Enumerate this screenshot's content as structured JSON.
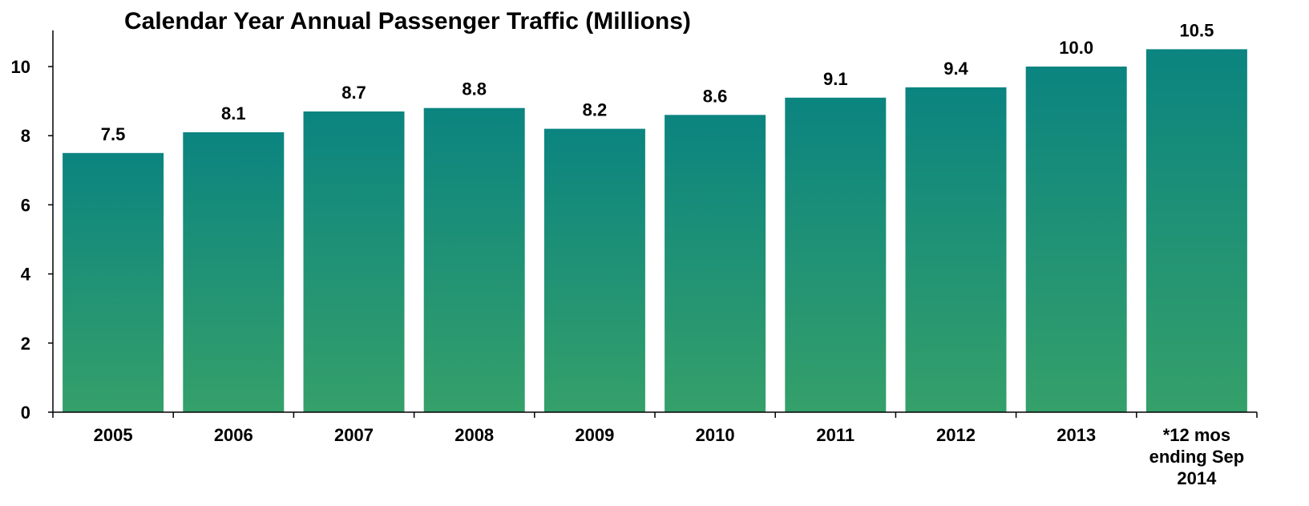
{
  "chart_data": {
    "type": "bar",
    "title": "Calendar Year Annual Passenger Traffic (Millions)",
    "xlabel": "",
    "ylabel": "",
    "categories": [
      [
        "2005"
      ],
      [
        "2006"
      ],
      [
        "2007"
      ],
      [
        "2008"
      ],
      [
        "2009"
      ],
      [
        "2010"
      ],
      [
        "2011"
      ],
      [
        "2012"
      ],
      [
        "2013"
      ],
      [
        "*12 mos",
        "ending Sep",
        "2014"
      ]
    ],
    "values": [
      7.5,
      8.1,
      8.7,
      8.8,
      8.2,
      8.6,
      9.1,
      9.4,
      10.0,
      10.5
    ],
    "data_labels": [
      "7.5",
      "8.1",
      "8.7",
      "8.8",
      "8.2",
      "8.6",
      "9.1",
      "9.4",
      "10.0",
      "10.5"
    ],
    "yticks": [
      0,
      2,
      4,
      6,
      8,
      10
    ],
    "ylim": [
      0,
      11
    ],
    "grid": false,
    "legend": "none",
    "colors": {
      "bar_top": "#0b8480",
      "bar_bottom": "#35a06a",
      "axis": "#000000",
      "text": "#000000"
    }
  }
}
